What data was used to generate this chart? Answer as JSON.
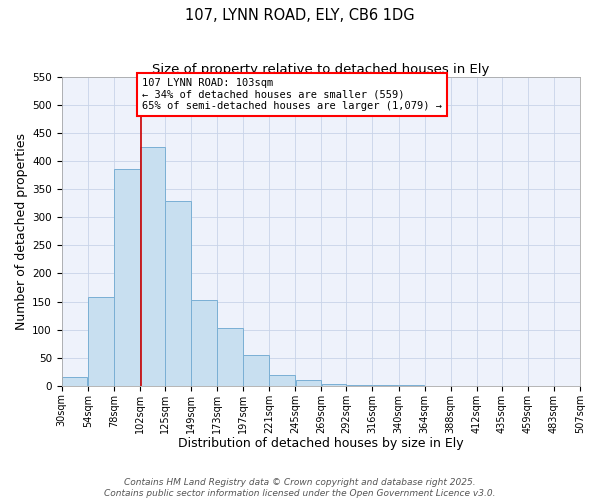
{
  "title": "107, LYNN ROAD, ELY, CB6 1DG",
  "subtitle": "Size of property relative to detached houses in Ely",
  "xlabel": "Distribution of detached houses by size in Ely",
  "ylabel": "Number of detached properties",
  "bar_left_edges": [
    30,
    54,
    78,
    102,
    125,
    149,
    173,
    197,
    221,
    245,
    269,
    292,
    316,
    340,
    364,
    388,
    412,
    435,
    459,
    483
  ],
  "bar_widths": [
    24,
    24,
    24,
    23,
    24,
    24,
    24,
    24,
    24,
    24,
    23,
    24,
    24,
    24,
    24,
    24,
    23,
    24,
    24,
    24
  ],
  "bar_heights": [
    15,
    158,
    385,
    425,
    328,
    153,
    102,
    55,
    20,
    10,
    4,
    2,
    1,
    1,
    0,
    0,
    0,
    0,
    0,
    0
  ],
  "bar_color": "#c8dff0",
  "bar_edge_color": "#7aafd4",
  "tick_labels": [
    "30sqm",
    "54sqm",
    "78sqm",
    "102sqm",
    "125sqm",
    "149sqm",
    "173sqm",
    "197sqm",
    "221sqm",
    "245sqm",
    "269sqm",
    "292sqm",
    "316sqm",
    "340sqm",
    "364sqm",
    "388sqm",
    "412sqm",
    "435sqm",
    "459sqm",
    "483sqm",
    "507sqm"
  ],
  "tick_positions": [
    30,
    54,
    78,
    102,
    125,
    149,
    173,
    197,
    221,
    245,
    269,
    292,
    316,
    340,
    364,
    388,
    412,
    435,
    459,
    483,
    507
  ],
  "ylim": [
    0,
    550
  ],
  "yticks": [
    0,
    50,
    100,
    150,
    200,
    250,
    300,
    350,
    400,
    450,
    500,
    550
  ],
  "vline_x": 103,
  "vline_color": "#cc0000",
  "annotation_text": "107 LYNN ROAD: 103sqm\n← 34% of detached houses are smaller (559)\n65% of semi-detached houses are larger (1,079) →",
  "footer_line1": "Contains HM Land Registry data © Crown copyright and database right 2025.",
  "footer_line2": "Contains public sector information licensed under the Open Government Licence v3.0.",
  "bg_color": "#eef2fb",
  "grid_color": "#c8d4e8",
  "title_fontsize": 10.5,
  "subtitle_fontsize": 9.5,
  "axis_label_fontsize": 9,
  "tick_fontsize": 7,
  "annotation_fontsize": 7.5,
  "footer_fontsize": 6.5
}
